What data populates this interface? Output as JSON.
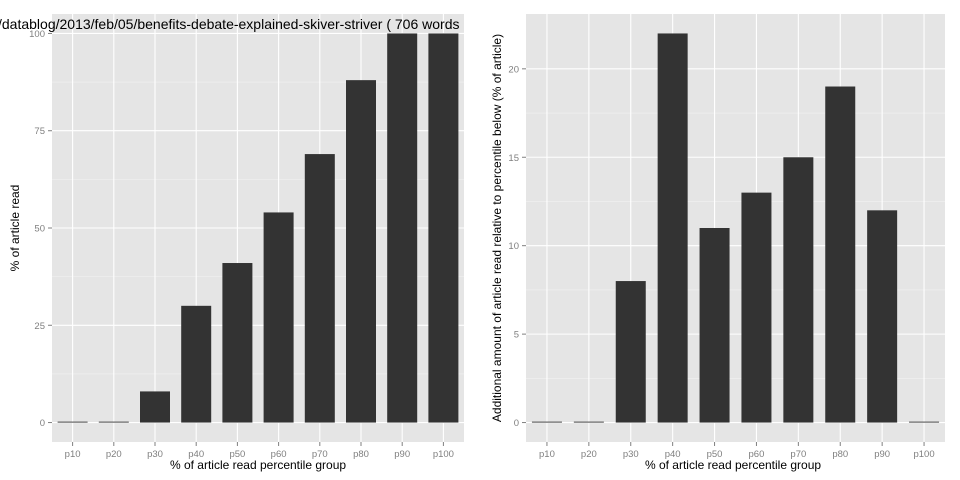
{
  "colors": {
    "panel_background": "#e5e5e5",
    "grid_major": "#ffffff",
    "grid_minor": "#f2f2f2",
    "bar_fill": "#333333",
    "tick_text": "#7f7f7f",
    "axis_text": "#000000"
  },
  "chart_data": [
    {
      "type": "bar",
      "title": "/datablog/2013/feb/05/benefits-debate-explained-skiver-striver ( 706 words",
      "xlabel": "% of article read percentile group",
      "ylabel": "% of article read",
      "categories": [
        "p10",
        "p20",
        "p30",
        "p40",
        "p50",
        "p60",
        "p70",
        "p80",
        "p90",
        "p100"
      ],
      "values": [
        0,
        0,
        8,
        30,
        41,
        54,
        69,
        88,
        100,
        100
      ],
      "yticks": [
        0,
        25,
        50,
        75,
        100
      ],
      "ylim": [
        -5,
        105
      ],
      "grid": true
    },
    {
      "type": "bar",
      "title": "",
      "xlabel": "% of article read percentile group",
      "ylabel": "Additional amount of article read relative to percentile below (% of article)",
      "categories": [
        "p10",
        "p20",
        "p30",
        "p40",
        "p50",
        "p60",
        "p70",
        "p80",
        "p90",
        "p100"
      ],
      "values": [
        0,
        0,
        8,
        22,
        11,
        13,
        15,
        19,
        12,
        0
      ],
      "yticks": [
        0,
        5,
        10,
        15,
        20
      ],
      "ylim": [
        -1.1,
        23.1
      ],
      "grid": true
    }
  ]
}
